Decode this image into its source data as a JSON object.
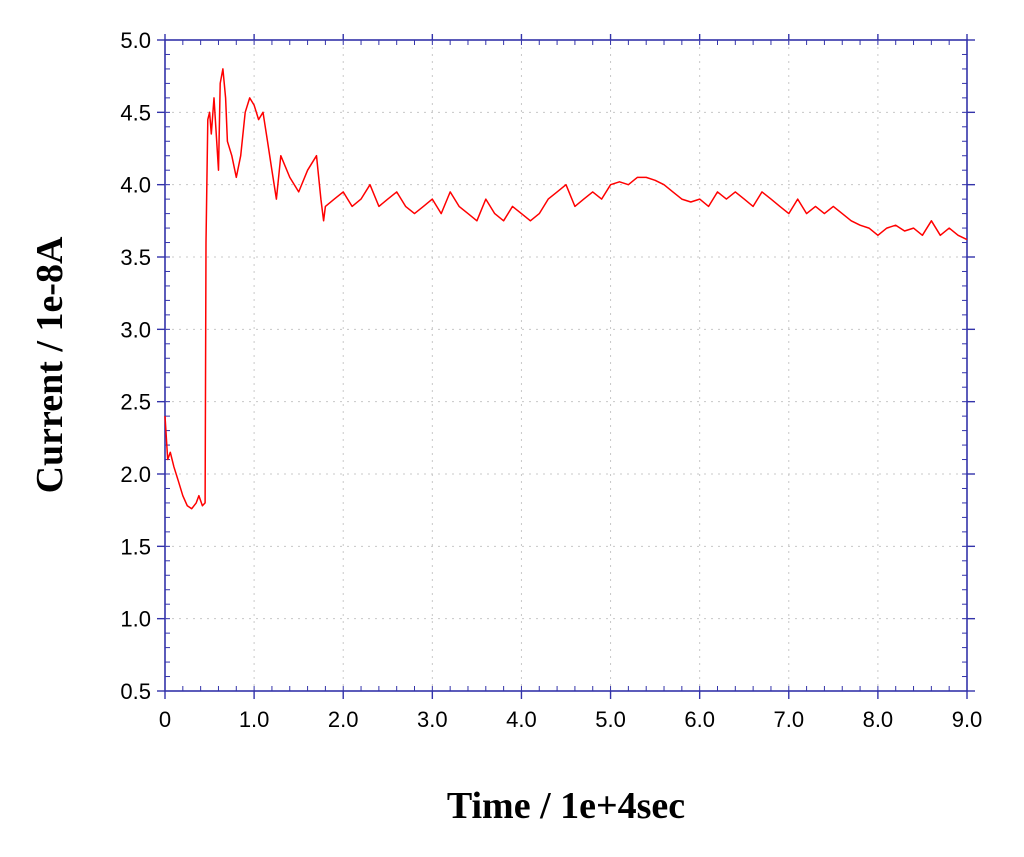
{
  "chart_data": {
    "type": "line",
    "title": "",
    "xlabel": "Time / 1e+4sec",
    "ylabel": "Current / 1e-8A",
    "xlim": [
      0,
      9.0
    ],
    "ylim": [
      0.5,
      5.0
    ],
    "x_ticks": [
      "0",
      "1.0",
      "2.0",
      "3.0",
      "4.0",
      "5.0",
      "6.0",
      "7.0",
      "8.0",
      "9.0"
    ],
    "y_ticks": [
      "0.5",
      "1.0",
      "1.5",
      "2.0",
      "2.5",
      "3.0",
      "3.5",
      "4.0",
      "4.5",
      "5.0"
    ],
    "grid": true,
    "legend": "none",
    "series": [
      {
        "color": "#ff0000",
        "x": [
          0,
          0.03,
          0.06,
          0.1,
          0.15,
          0.2,
          0.25,
          0.3,
          0.35,
          0.38,
          0.42,
          0.45,
          0.46,
          0.48,
          0.5,
          0.52,
          0.55,
          0.58,
          0.6,
          0.62,
          0.65,
          0.68,
          0.7,
          0.75,
          0.8,
          0.85,
          0.9,
          0.95,
          1.0,
          1.05,
          1.1,
          1.15,
          1.2,
          1.25,
          1.3,
          1.4,
          1.5,
          1.6,
          1.7,
          1.75,
          1.78,
          1.8,
          1.9,
          2.0,
          2.1,
          2.2,
          2.3,
          2.4,
          2.5,
          2.6,
          2.7,
          2.8,
          2.9,
          3.0,
          3.1,
          3.2,
          3.3,
          3.4,
          3.5,
          3.6,
          3.7,
          3.8,
          3.9,
          4.0,
          4.1,
          4.2,
          4.3,
          4.4,
          4.5,
          4.6,
          4.7,
          4.8,
          4.9,
          5.0,
          5.1,
          5.2,
          5.3,
          5.4,
          5.5,
          5.6,
          5.7,
          5.8,
          5.9,
          6.0,
          6.1,
          6.2,
          6.3,
          6.4,
          6.5,
          6.6,
          6.7,
          6.8,
          6.9,
          7.0,
          7.1,
          7.2,
          7.3,
          7.4,
          7.5,
          7.6,
          7.7,
          7.8,
          7.9,
          8.0,
          8.1,
          8.2,
          8.3,
          8.4,
          8.5,
          8.6,
          8.7,
          8.8,
          8.9,
          9.0
        ],
        "y": [
          2.4,
          2.1,
          2.15,
          2.05,
          1.95,
          1.85,
          1.78,
          1.76,
          1.8,
          1.85,
          1.78,
          1.8,
          3.6,
          4.45,
          4.5,
          4.35,
          4.6,
          4.3,
          4.1,
          4.7,
          4.8,
          4.6,
          4.3,
          4.2,
          4.05,
          4.2,
          4.5,
          4.6,
          4.55,
          4.45,
          4.5,
          4.3,
          4.1,
          3.9,
          4.2,
          4.05,
          3.95,
          4.1,
          4.2,
          3.9,
          3.75,
          3.85,
          3.9,
          3.95,
          3.85,
          3.9,
          4.0,
          3.85,
          3.9,
          3.95,
          3.85,
          3.8,
          3.85,
          3.9,
          3.8,
          3.95,
          3.85,
          3.8,
          3.75,
          3.9,
          3.8,
          3.75,
          3.85,
          3.8,
          3.75,
          3.8,
          3.9,
          3.95,
          4.0,
          3.85,
          3.9,
          3.95,
          3.9,
          4.0,
          4.02,
          4.0,
          4.05,
          4.05,
          4.03,
          4.0,
          3.95,
          3.9,
          3.88,
          3.9,
          3.85,
          3.95,
          3.9,
          3.95,
          3.9,
          3.85,
          3.95,
          3.9,
          3.85,
          3.8,
          3.9,
          3.8,
          3.85,
          3.8,
          3.85,
          3.8,
          3.75,
          3.72,
          3.7,
          3.65,
          3.7,
          3.72,
          3.68,
          3.7,
          3.65,
          3.75,
          3.65,
          3.7,
          3.65,
          3.62
        ]
      }
    ]
  }
}
